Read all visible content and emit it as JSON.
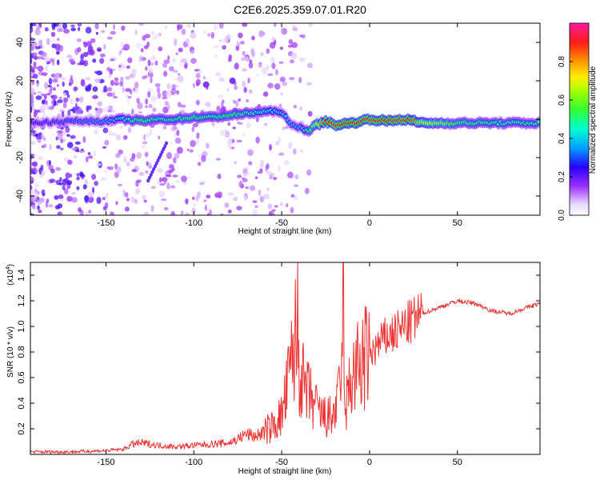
{
  "title": "C2E6.2025.359.07.01.R20",
  "chart_data": [
    {
      "type": "heatmap",
      "title": "C2E6.2025.359.07.01.R20",
      "xlabel": "Height of straight line (km)",
      "ylabel": "Frequency (Hz)",
      "xlim": [
        -193,
        97
      ],
      "ylim": [
        -50,
        50
      ],
      "xticks": [
        -150,
        -100,
        -50,
        0,
        50
      ],
      "yticks": [
        -40,
        -20,
        0,
        20,
        40
      ],
      "colorbar": {
        "label": "Normalized spectral amplitude",
        "range": [
          0,
          1
        ],
        "ticks": [
          0.0,
          0.2,
          0.4,
          0.6,
          0.8
        ]
      },
      "ridge": {
        "x": [
          -193,
          -170,
          -150,
          -140,
          -130,
          -120,
          -110,
          -100,
          -90,
          -80,
          -70,
          -60,
          -50,
          -45,
          -40,
          -35,
          -30,
          -25,
          -20,
          -10,
          0,
          10,
          20,
          30,
          50,
          70,
          97
        ],
        "freq": [
          -2,
          -1,
          -1,
          0,
          -1,
          0,
          0,
          1,
          1,
          2,
          3,
          4,
          4,
          -3,
          -4,
          -6,
          -3,
          -1,
          -3,
          -2,
          0,
          -1,
          0,
          -2,
          -2,
          -2,
          -2
        ],
        "amplitude": [
          0.25,
          0.3,
          0.35,
          0.45,
          0.55,
          0.5,
          0.5,
          0.55,
          0.5,
          0.55,
          0.5,
          0.45,
          0.4,
          0.35,
          0.35,
          0.5,
          0.7,
          0.9,
          0.95,
          0.9,
          0.95,
          0.9,
          0.95,
          0.75,
          0.55,
          0.5,
          0.5
        ]
      },
      "features": [
        {
          "x": -120,
          "freq": -22,
          "note": "diagonal streak"
        },
        {
          "x": -93,
          "freq": 18,
          "note": "blob"
        },
        {
          "x": -78,
          "freq": 20,
          "note": "blob"
        }
      ]
    },
    {
      "type": "line",
      "xlabel": "Height of straight line (km)",
      "ylabel": "SNR (10 * v/v)",
      "y_scale_label": "(x10",
      "y_scale_exponent": "4",
      "xlim": [
        -193,
        97
      ],
      "ylim": [
        0,
        1.5
      ],
      "xticks": [
        -150,
        -100,
        -50,
        0,
        50
      ],
      "yticks": [
        0.2,
        0.4,
        0.6,
        0.8,
        1.0,
        1.2,
        1.4
      ],
      "series": [
        {
          "name": "SNR",
          "color": "#ee3333",
          "x": [
            -193,
            -170,
            -150,
            -140,
            -135,
            -130,
            -120,
            -110,
            -100,
            -90,
            -80,
            -75,
            -70,
            -65,
            -60,
            -55,
            -50,
            -47,
            -44,
            -42,
            -40,
            -37,
            -34,
            -30,
            -27,
            -24,
            -21,
            -18,
            -16,
            -14,
            -12,
            -10,
            -5,
            0,
            5,
            8,
            10,
            15,
            20,
            25,
            30,
            40,
            50,
            60,
            70,
            80,
            90,
            97
          ],
          "values": [
            0.02,
            0.02,
            0.03,
            0.04,
            0.08,
            0.09,
            0.07,
            0.06,
            0.07,
            0.08,
            0.09,
            0.12,
            0.16,
            0.14,
            0.18,
            0.22,
            0.3,
            0.5,
            0.75,
            0.9,
            0.7,
            0.5,
            0.45,
            0.35,
            0.3,
            0.28,
            0.3,
            0.4,
            0.7,
            0.28,
            0.5,
            0.6,
            0.7,
            0.78,
            0.85,
            0.9,
            0.92,
            0.95,
            1.0,
            1.05,
            1.1,
            1.15,
            1.2,
            1.18,
            1.12,
            1.1,
            1.15,
            1.18
          ]
        }
      ],
      "spikes": [
        {
          "x": -41,
          "value": 1.5
        },
        {
          "x": -15,
          "value": 1.5
        }
      ]
    }
  ]
}
